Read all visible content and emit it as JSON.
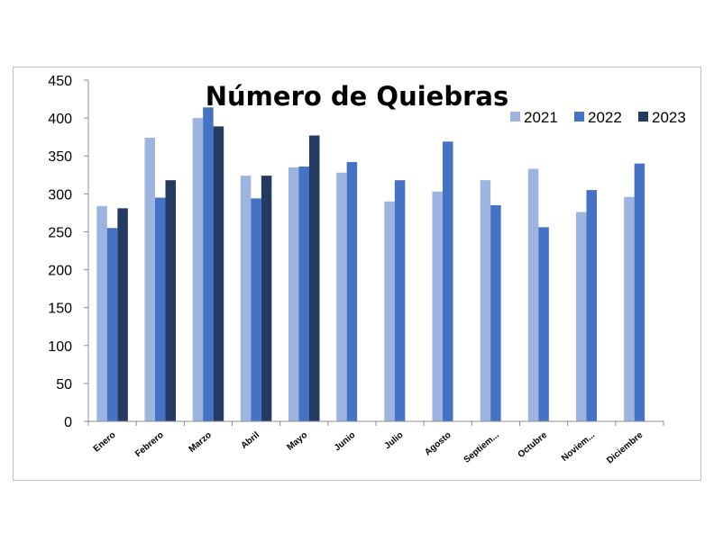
{
  "chart_data": {
    "type": "bar",
    "title": "Número de Quiebras",
    "xlabel": "",
    "ylabel": "",
    "ylim": [
      0,
      450
    ],
    "yticks": [
      0,
      50,
      100,
      150,
      200,
      250,
      300,
      350,
      400,
      450
    ],
    "grid": false,
    "legend_position": "top-right",
    "categories": [
      "Enero",
      "Febrero",
      "Marzo",
      "Abril",
      "Mayo",
      "Junio",
      "Julio",
      "Agosto",
      "Septiem...",
      "Octubre",
      "Noviem...",
      "Diciembre"
    ],
    "series": [
      {
        "name": "2021",
        "color": "#9DB3E0",
        "values": [
          284,
          374,
          400,
          324,
          335,
          328,
          290,
          303,
          318,
          333,
          276,
          296
        ]
      },
      {
        "name": "2022",
        "color": "#4472C4",
        "values": [
          255,
          295,
          414,
          294,
          336,
          342,
          318,
          369,
          285,
          256,
          305,
          340
        ]
      },
      {
        "name": "2023",
        "color": "#243A63",
        "values": [
          281,
          318,
          389,
          324,
          377,
          null,
          null,
          null,
          null,
          null,
          null,
          null
        ]
      }
    ]
  }
}
